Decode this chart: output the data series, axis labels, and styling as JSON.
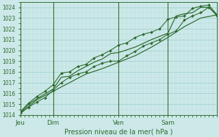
{
  "background_color": "#cce8e8",
  "grid_major_color": "#99cccc",
  "grid_minor_color": "#b8dede",
  "line_color": "#2d6a2d",
  "title": "Pression niveau de la mer( hPa )",
  "ylim": [
    1014,
    1024.5
  ],
  "yticks": [
    1014,
    1015,
    1016,
    1017,
    1018,
    1019,
    1020,
    1021,
    1022,
    1023,
    1024
  ],
  "xtick_labels": [
    "Jeu",
    "Dim",
    "Ven",
    "Sam"
  ],
  "xtick_positions": [
    0,
    48,
    144,
    216
  ],
  "vline_positions": [
    0,
    48,
    144,
    216
  ],
  "total_hours": 288,
  "series": [
    {
      "x": [
        0,
        12,
        24,
        48,
        72,
        96,
        120,
        144,
        168,
        192,
        216,
        240,
        264,
        288
      ],
      "y": [
        1014.1,
        1014.8,
        1015.4,
        1016.2,
        1017.0,
        1017.8,
        1018.3,
        1018.9,
        1019.5,
        1020.3,
        1021.2,
        1022.2,
        1023.0,
        1023.3
      ],
      "marker": false,
      "lw": 0.9
    },
    {
      "x": [
        0,
        12,
        24,
        36,
        48,
        60,
        72,
        84,
        96,
        108,
        120,
        132,
        144,
        156,
        168,
        180,
        192,
        204,
        216,
        228,
        240,
        252,
        264,
        276,
        288
      ],
      "y": [
        1014.2,
        1014.7,
        1015.2,
        1015.6,
        1016.3,
        1017.0,
        1017.5,
        1017.8,
        1018.0,
        1018.5,
        1018.8,
        1019.0,
        1019.0,
        1019.5,
        1019.9,
        1020.4,
        1020.7,
        1021.0,
        1021.5,
        1021.8,
        1022.8,
        1023.2,
        1023.5,
        1024.0,
        1023.2
      ],
      "marker": true,
      "lw": 0.8
    },
    {
      "x": [
        0,
        12,
        24,
        48,
        60,
        72,
        84,
        96,
        108,
        120,
        132,
        144,
        168,
        192,
        216,
        228,
        240,
        252,
        264,
        276,
        288
      ],
      "y": [
        1014.2,
        1015.0,
        1015.5,
        1016.4,
        1017.5,
        1017.6,
        1018.1,
        1018.5,
        1018.9,
        1019.2,
        1019.7,
        1019.8,
        1020.3,
        1021.0,
        1021.6,
        1023.2,
        1023.4,
        1023.5,
        1024.0,
        1024.0,
        1023.3
      ],
      "marker": false,
      "lw": 0.9
    },
    {
      "x": [
        0,
        12,
        24,
        36,
        48,
        60,
        72,
        84,
        96,
        108,
        120,
        132,
        144,
        156,
        168,
        180,
        192,
        204,
        216,
        228,
        240,
        252,
        264,
        276,
        288
      ],
      "y": [
        1014.3,
        1015.1,
        1015.7,
        1016.2,
        1016.8,
        1017.9,
        1018.0,
        1018.5,
        1018.7,
        1019.3,
        1019.6,
        1020.0,
        1020.5,
        1020.7,
        1021.2,
        1021.5,
        1021.7,
        1022.0,
        1022.9,
        1023.1,
        1023.2,
        1023.9,
        1024.1,
        1024.2,
        1023.3
      ],
      "marker": true,
      "lw": 0.8
    }
  ]
}
